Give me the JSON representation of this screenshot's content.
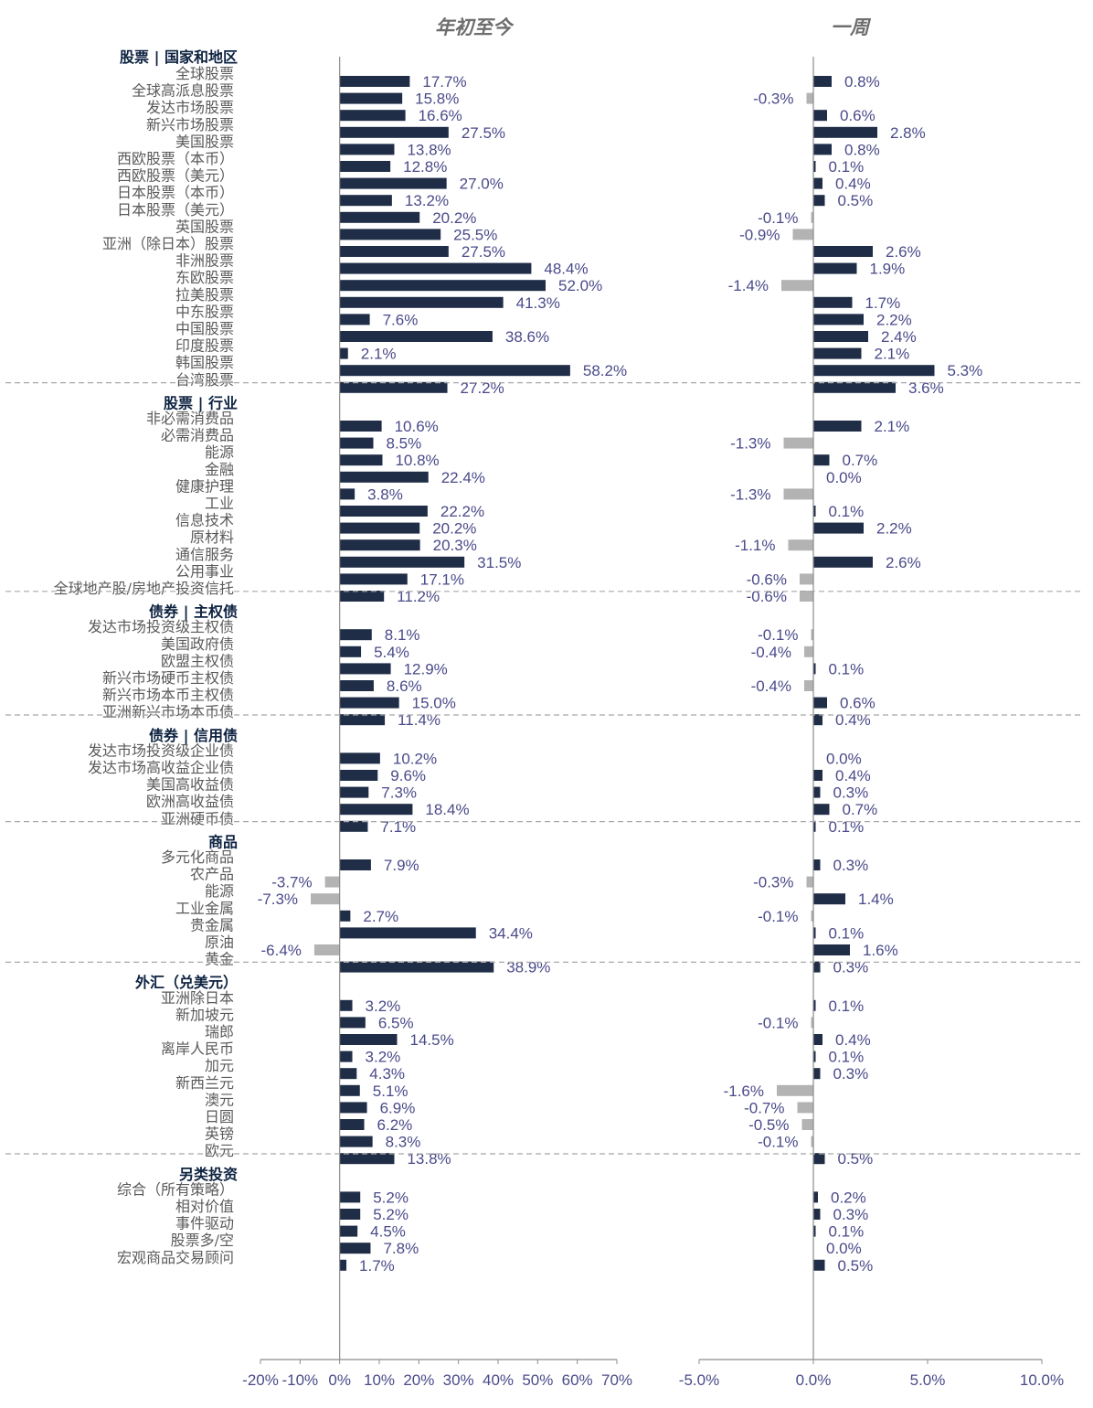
{
  "chart_data": {
    "type": "bar",
    "orientation": "horizontal",
    "colors": {
      "positive": "#1f2d46",
      "negative": "#b3b3b3",
      "labels": "#4a4a8a",
      "section_header": "#0d2240",
      "category": "#5a5a5a"
    },
    "panels": [
      {
        "title": "年初至今",
        "xlim": [
          -20,
          70
        ],
        "ticks": [
          "-20%",
          "-10%",
          "0%",
          "10%",
          "20%",
          "30%",
          "40%",
          "50%",
          "60%",
          "70%"
        ]
      },
      {
        "title": "一周",
        "xlim": [
          -5,
          10
        ],
        "ticks": [
          "-5.0%",
          "0.0%",
          "5.0%",
          "10.0%"
        ]
      }
    ],
    "sections": [
      {
        "header": "股票 | 国家和地区",
        "rows": [
          {
            "label": "全球股票",
            "ytd": 17.7,
            "ytd_label": "17.7%",
            "wk": 0.8,
            "wk_label": "0.8%"
          },
          {
            "label": "全球高派息股票",
            "ytd": 15.8,
            "ytd_label": "15.8%",
            "wk": -0.3,
            "wk_label": "-0.3%"
          },
          {
            "label": "发达市场股票",
            "ytd": 16.6,
            "ytd_label": "16.6%",
            "wk": 0.6,
            "wk_label": "0.6%"
          },
          {
            "label": "新兴市场股票",
            "ytd": 27.5,
            "ytd_label": "27.5%",
            "wk": 2.8,
            "wk_label": "2.8%"
          },
          {
            "label": "美国股票",
            "ytd": 13.8,
            "ytd_label": "13.8%",
            "wk": 0.8,
            "wk_label": "0.8%"
          },
          {
            "label": "西欧股票（本币）",
            "ytd": 12.8,
            "ytd_label": "12.8%",
            "wk": 0.1,
            "wk_label": "0.1%"
          },
          {
            "label": "西欧股票（美元）",
            "ytd": 27.0,
            "ytd_label": "27.0%",
            "wk": 0.4,
            "wk_label": "0.4%"
          },
          {
            "label": "日本股票（本币）",
            "ytd": 13.2,
            "ytd_label": "13.2%",
            "wk": 0.5,
            "wk_label": "0.5%"
          },
          {
            "label": "日本股票（美元）",
            "ytd": 20.2,
            "ytd_label": "20.2%",
            "wk": -0.1,
            "wk_label": "-0.1%"
          },
          {
            "label": "英国股票",
            "ytd": 25.5,
            "ytd_label": "25.5%",
            "wk": -0.9,
            "wk_label": "-0.9%"
          },
          {
            "label": "亚洲（除日本）股票",
            "ytd": 27.5,
            "ytd_label": "27.5%",
            "wk": 2.6,
            "wk_label": "2.6%"
          },
          {
            "label": "非洲股票",
            "ytd": 48.4,
            "ytd_label": "48.4%",
            "wk": 1.9,
            "wk_label": "1.9%"
          },
          {
            "label": "东欧股票",
            "ytd": 52.0,
            "ytd_label": "52.0%",
            "wk": -1.4,
            "wk_label": "-1.4%"
          },
          {
            "label": "拉美股票",
            "ytd": 41.3,
            "ytd_label": "41.3%",
            "wk": 1.7,
            "wk_label": "1.7%"
          },
          {
            "label": "中东股票",
            "ytd": 7.6,
            "ytd_label": "7.6%",
            "wk": 2.2,
            "wk_label": "2.2%"
          },
          {
            "label": "中国股票",
            "ytd": 38.6,
            "ytd_label": "38.6%",
            "wk": 2.4,
            "wk_label": "2.4%"
          },
          {
            "label": "印度股票",
            "ytd": 2.1,
            "ytd_label": "2.1%",
            "wk": 2.1,
            "wk_label": "2.1%"
          },
          {
            "label": "韩国股票",
            "ytd": 58.2,
            "ytd_label": "58.2%",
            "wk": 5.3,
            "wk_label": "5.3%"
          },
          {
            "label": "台湾股票",
            "ytd": 27.2,
            "ytd_label": "27.2%",
            "wk": 3.6,
            "wk_label": "3.6%"
          }
        ]
      },
      {
        "header": "股票 | 行业",
        "rows": [
          {
            "label": "非必需消费品",
            "ytd": 10.6,
            "ytd_label": "10.6%",
            "wk": 2.1,
            "wk_label": "2.1%"
          },
          {
            "label": "必需消费品",
            "ytd": 8.5,
            "ytd_label": "8.5%",
            "wk": -1.3,
            "wk_label": "-1.3%"
          },
          {
            "label": "能源",
            "ytd": 10.8,
            "ytd_label": "10.8%",
            "wk": 0.7,
            "wk_label": "0.7%"
          },
          {
            "label": "金融",
            "ytd": 22.4,
            "ytd_label": "22.4%",
            "wk": 0.0,
            "wk_label": "0.0%"
          },
          {
            "label": "健康护理",
            "ytd": 3.8,
            "ytd_label": "3.8%",
            "wk": -1.3,
            "wk_label": "-1.3%"
          },
          {
            "label": "工业",
            "ytd": 22.2,
            "ytd_label": "22.2%",
            "wk": 0.1,
            "wk_label": "0.1%"
          },
          {
            "label": "信息技术",
            "ytd": 20.2,
            "ytd_label": "20.2%",
            "wk": 2.2,
            "wk_label": "2.2%"
          },
          {
            "label": "原材料",
            "ytd": 20.3,
            "ytd_label": "20.3%",
            "wk": -1.1,
            "wk_label": "-1.1%"
          },
          {
            "label": "通信服务",
            "ytd": 31.5,
            "ytd_label": "31.5%",
            "wk": 2.6,
            "wk_label": "2.6%"
          },
          {
            "label": "公用事业",
            "ytd": 17.1,
            "ytd_label": "17.1%",
            "wk": -0.6,
            "wk_label": "-0.6%"
          },
          {
            "label": "全球地产股/房地产投资信托",
            "ytd": 11.2,
            "ytd_label": "11.2%",
            "wk": -0.6,
            "wk_label": "-0.6%"
          }
        ]
      },
      {
        "header": "债券 | 主权债",
        "rows": [
          {
            "label": "发达市场投资级主权债",
            "ytd": 8.1,
            "ytd_label": "8.1%",
            "wk": -0.1,
            "wk_label": "-0.1%"
          },
          {
            "label": "美国政府债",
            "ytd": 5.4,
            "ytd_label": "5.4%",
            "wk": -0.4,
            "wk_label": "-0.4%"
          },
          {
            "label": "欧盟主权债",
            "ytd": 12.9,
            "ytd_label": "12.9%",
            "wk": 0.1,
            "wk_label": "0.1%"
          },
          {
            "label": "新兴市场硬币主权债",
            "ytd": 8.6,
            "ytd_label": "8.6%",
            "wk": -0.4,
            "wk_label": "-0.4%"
          },
          {
            "label": "新兴市场本币主权债",
            "ytd": 15.0,
            "ytd_label": "15.0%",
            "wk": 0.6,
            "wk_label": "0.6%"
          },
          {
            "label": "亚洲新兴市场本币债",
            "ytd": 11.4,
            "ytd_label": "11.4%",
            "wk": 0.4,
            "wk_label": "0.4%"
          }
        ]
      },
      {
        "header": "债券 | 信用债",
        "rows": [
          {
            "label": "发达市场投资级企业债",
            "ytd": 10.2,
            "ytd_label": "10.2%",
            "wk": 0.0,
            "wk_label": "0.0%"
          },
          {
            "label": "发达市场高收益企业债",
            "ytd": 9.6,
            "ytd_label": "9.6%",
            "wk": 0.4,
            "wk_label": "0.4%"
          },
          {
            "label": "美国高收益债",
            "ytd": 7.3,
            "ytd_label": "7.3%",
            "wk": 0.3,
            "wk_label": "0.3%"
          },
          {
            "label": "欧洲高收益债",
            "ytd": 18.4,
            "ytd_label": "18.4%",
            "wk": 0.7,
            "wk_label": "0.7%"
          },
          {
            "label": "亚洲硬币债",
            "ytd": 7.1,
            "ytd_label": "7.1%",
            "wk": 0.1,
            "wk_label": "0.1%"
          }
        ]
      },
      {
        "header": "商品",
        "rows": [
          {
            "label": "多元化商品",
            "ytd": 7.9,
            "ytd_label": "7.9%",
            "wk": 0.3,
            "wk_label": "0.3%"
          },
          {
            "label": "农产品",
            "ytd": -3.7,
            "ytd_label": "-3.7%",
            "wk": -0.3,
            "wk_label": "-0.3%"
          },
          {
            "label": "能源",
            "ytd": -7.3,
            "ytd_label": "-7.3%",
            "wk": 1.4,
            "wk_label": "1.4%"
          },
          {
            "label": "工业金属",
            "ytd": 2.7,
            "ytd_label": "2.7%",
            "wk": -0.1,
            "wk_label": "-0.1%"
          },
          {
            "label": "贵金属",
            "ytd": 34.4,
            "ytd_label": "34.4%",
            "wk": 0.1,
            "wk_label": "0.1%"
          },
          {
            "label": "原油",
            "ytd": -6.4,
            "ytd_label": "-6.4%",
            "wk": 1.6,
            "wk_label": "1.6%"
          },
          {
            "label": "黄金",
            "ytd": 38.9,
            "ytd_label": "38.9%",
            "wk": 0.3,
            "wk_label": "0.3%"
          }
        ]
      },
      {
        "header": "外汇（兑美元）",
        "rows": [
          {
            "label": "亚洲除日本",
            "ytd": 3.2,
            "ytd_label": "3.2%",
            "wk": 0.1,
            "wk_label": "0.1%"
          },
          {
            "label": "新加坡元",
            "ytd": 6.5,
            "ytd_label": "6.5%",
            "wk": -0.1,
            "wk_label": "-0.1%"
          },
          {
            "label": "瑞郎",
            "ytd": 14.5,
            "ytd_label": "14.5%",
            "wk": 0.4,
            "wk_label": "0.4%"
          },
          {
            "label": "离岸人民币",
            "ytd": 3.2,
            "ytd_label": "3.2%",
            "wk": 0.1,
            "wk_label": "0.1%"
          },
          {
            "label": "加元",
            "ytd": 4.3,
            "ytd_label": "4.3%",
            "wk": 0.3,
            "wk_label": "0.3%"
          },
          {
            "label": "新西兰元",
            "ytd": 5.1,
            "ytd_label": "5.1%",
            "wk": -1.6,
            "wk_label": "-1.6%"
          },
          {
            "label": "澳元",
            "ytd": 6.9,
            "ytd_label": "6.9%",
            "wk": -0.7,
            "wk_label": "-0.7%"
          },
          {
            "label": "日圆",
            "ytd": 6.2,
            "ytd_label": "6.2%",
            "wk": -0.5,
            "wk_label": "-0.5%"
          },
          {
            "label": "英镑",
            "ytd": 8.3,
            "ytd_label": "8.3%",
            "wk": -0.1,
            "wk_label": "-0.1%"
          },
          {
            "label": "欧元",
            "ytd": 13.8,
            "ytd_label": "13.8%",
            "wk": 0.5,
            "wk_label": "0.5%"
          }
        ]
      },
      {
        "header": "另类投资",
        "rows": [
          {
            "label": "综合（所有策略）",
            "ytd": 5.2,
            "ytd_label": "5.2%",
            "wk": 0.2,
            "wk_label": "0.2%"
          },
          {
            "label": "相对价值",
            "ytd": 5.2,
            "ytd_label": "5.2%",
            "wk": 0.3,
            "wk_label": "0.3%"
          },
          {
            "label": "事件驱动",
            "ytd": 4.5,
            "ytd_label": "4.5%",
            "wk": 0.1,
            "wk_label": "0.1%"
          },
          {
            "label": "股票多/空",
            "ytd": 7.8,
            "ytd_label": "7.8%",
            "wk": 0.0,
            "wk_label": "0.0%"
          },
          {
            "label": "宏观商品交易顾问",
            "ytd": 1.7,
            "ytd_label": "1.7%",
            "wk": 0.5,
            "wk_label": "0.5%"
          }
        ]
      }
    ]
  }
}
